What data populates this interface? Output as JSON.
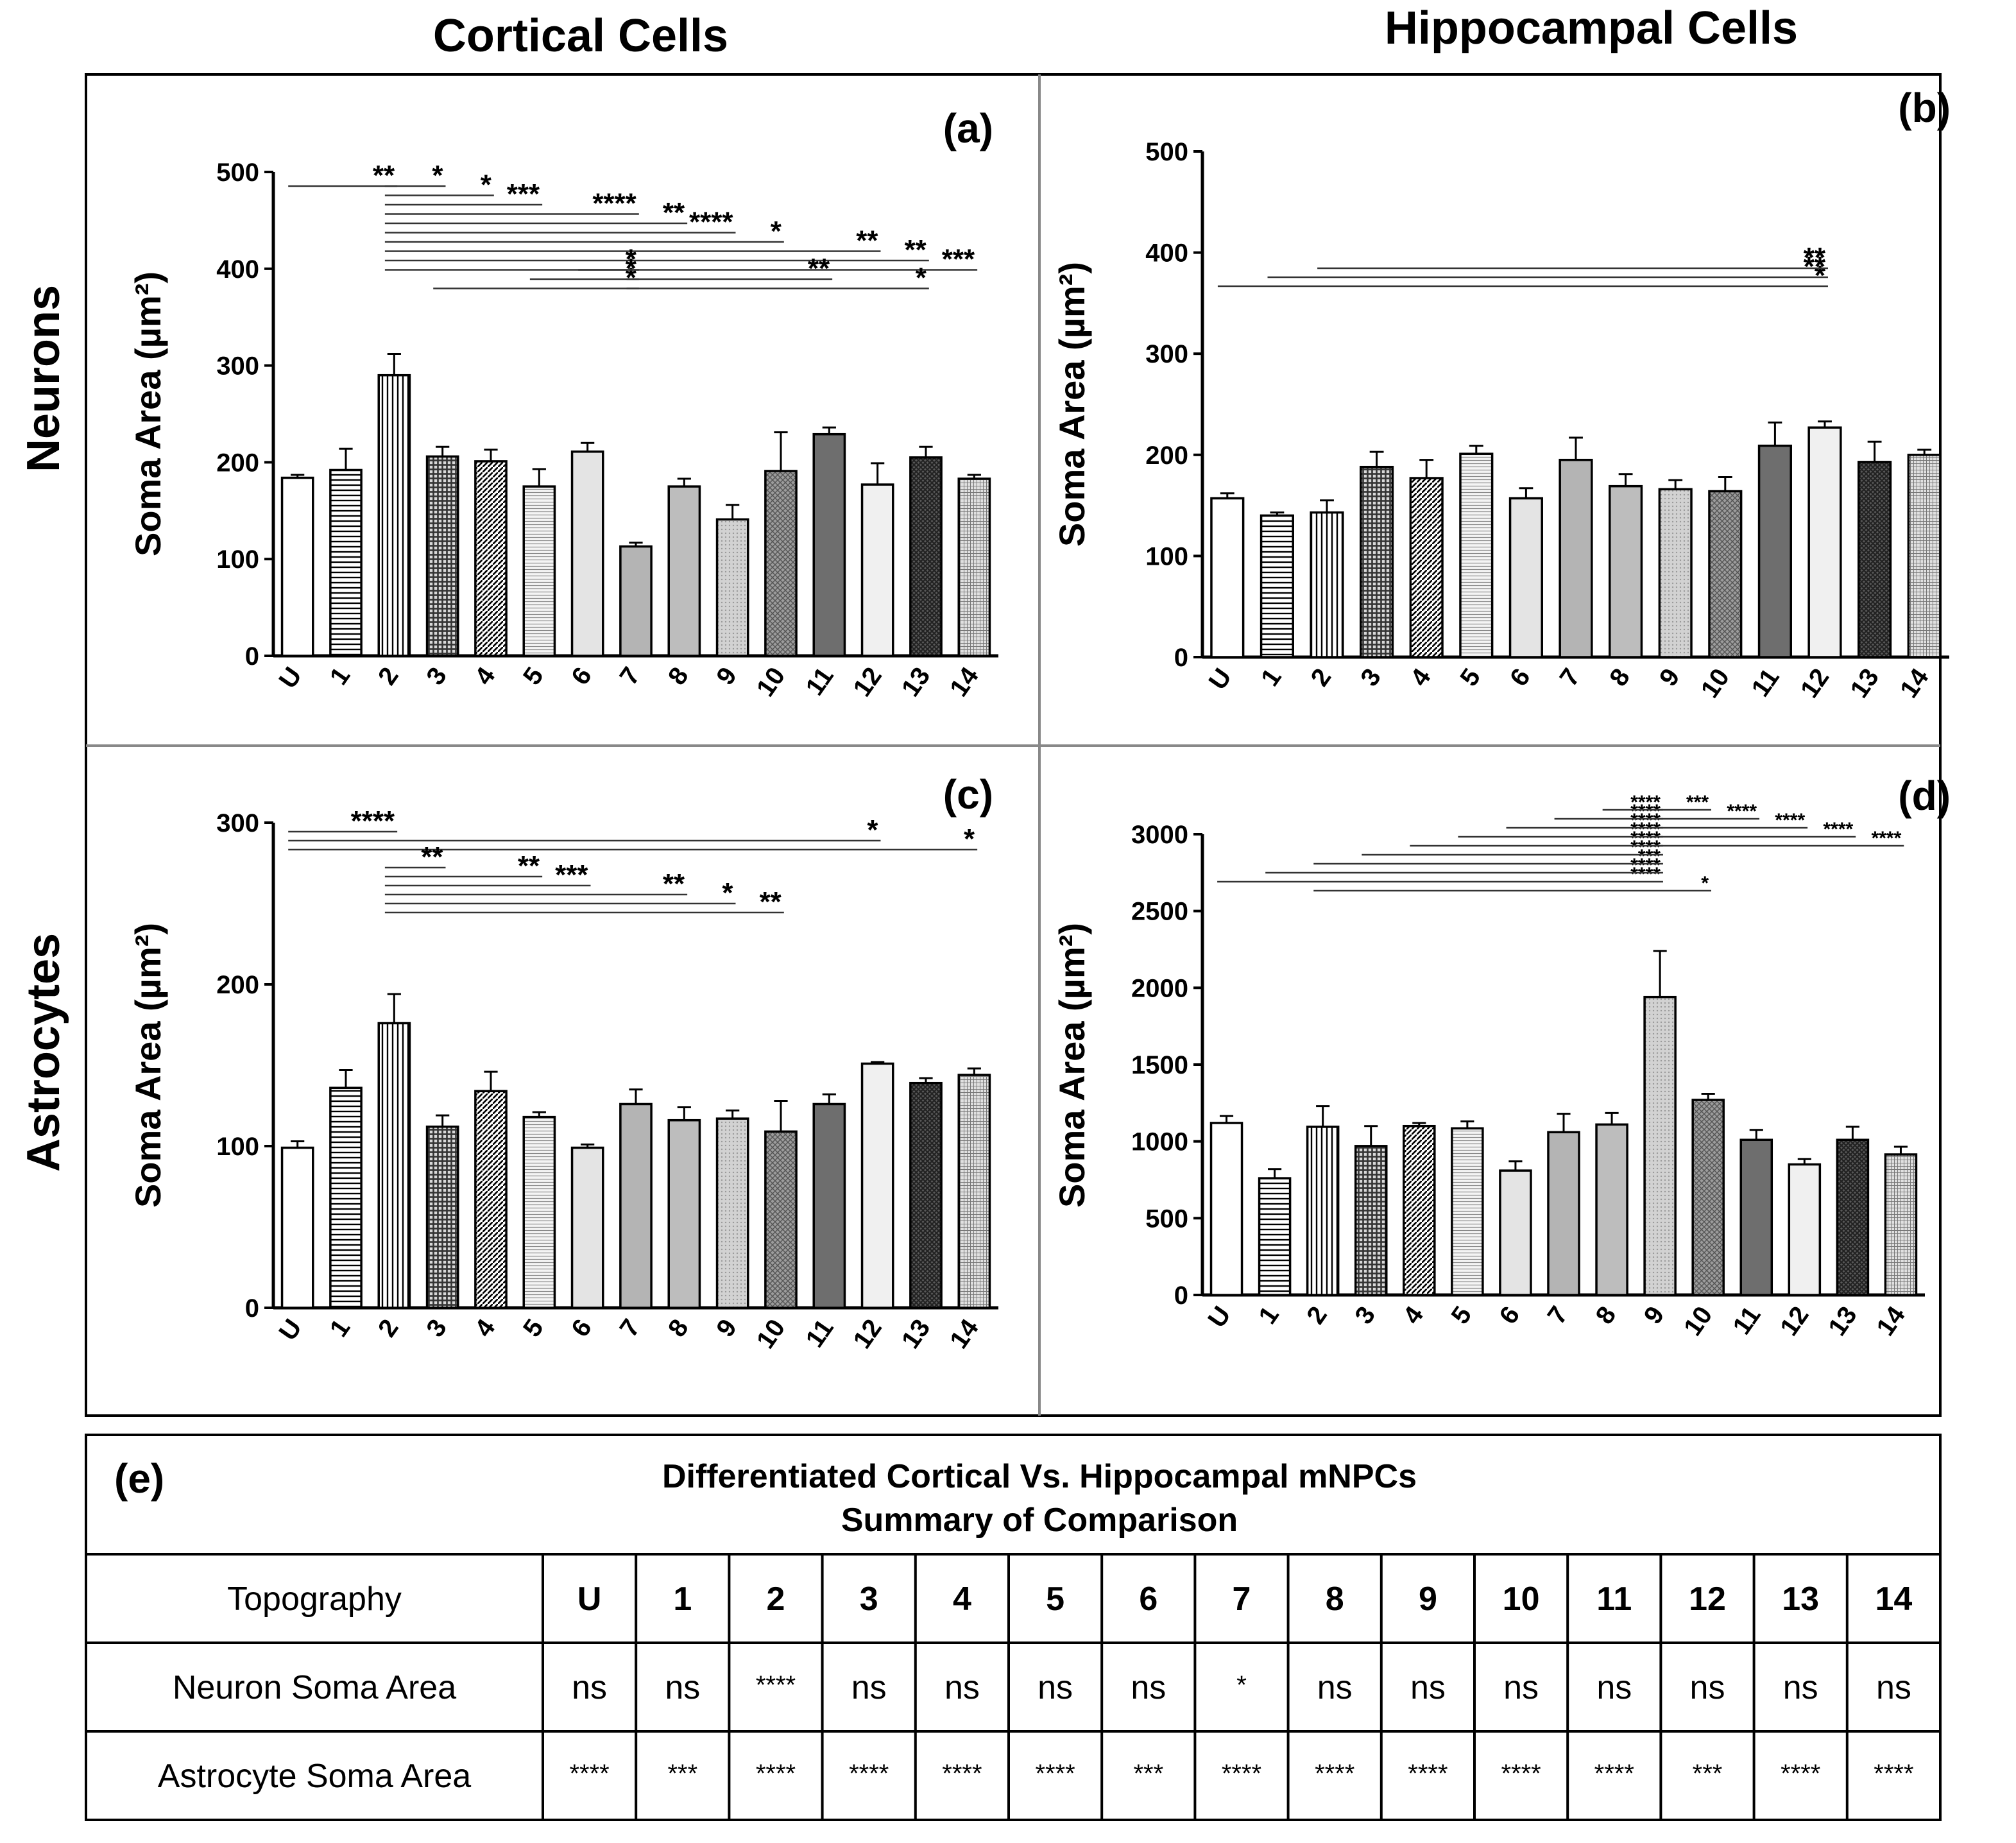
{
  "column_titles": [
    "Cortical Cells",
    "Hippocampal Cells"
  ],
  "row_titles": [
    "Neurons",
    "Astrocytes"
  ],
  "categories": [
    "U",
    "1",
    "2",
    "3",
    "4",
    "5",
    "6",
    "7",
    "8",
    "9",
    "10",
    "11",
    "12",
    "13",
    "14"
  ],
  "chart_data": [
    {
      "panel": "(a)",
      "type": "bar",
      "title": "",
      "ylabel": "Soma Area (µm²)",
      "ylim": [
        0,
        500
      ],
      "yticks": [
        0,
        100,
        200,
        300,
        400,
        500
      ],
      "values": [
        184,
        192,
        290,
        206,
        201,
        175,
        211,
        113,
        175,
        141,
        191,
        229,
        177,
        205,
        183
      ],
      "errors": [
        3,
        22,
        22,
        10,
        12,
        18,
        9,
        4,
        8,
        15,
        40,
        7,
        22,
        11,
        4
      ],
      "significance": [
        {
          "from": 0,
          "to": 2,
          "level": 0,
          "label": "**"
        },
        {
          "from": 2,
          "to": 3,
          "level": 0,
          "label": "*"
        },
        {
          "from": 2,
          "to": 4,
          "level": 1,
          "label": "*"
        },
        {
          "from": 2,
          "to": 5,
          "level": 2,
          "label": "***"
        },
        {
          "from": 2,
          "to": 7,
          "level": 3,
          "label": "****"
        },
        {
          "from": 2,
          "to": 8,
          "level": 4,
          "label": "**"
        },
        {
          "from": 2,
          "to": 9,
          "level": 5,
          "label": "****"
        },
        {
          "from": 2,
          "to": 10,
          "level": 6,
          "label": "*"
        },
        {
          "from": 2,
          "to": 12,
          "level": 7,
          "label": "**"
        },
        {
          "from": 2,
          "to": 13,
          "level": 8,
          "label": "**"
        },
        {
          "from": 2,
          "to": 14,
          "level": 9,
          "label": "***"
        },
        {
          "from": 3,
          "to": 7,
          "level": 11,
          "label": "*"
        },
        {
          "from": 5,
          "to": 7,
          "level": 10,
          "label": "*"
        },
        {
          "from": 6,
          "to": 7,
          "level": 9,
          "label": "*"
        },
        {
          "from": 7,
          "to": 11,
          "level": 10,
          "label": "**"
        },
        {
          "from": 7,
          "to": 13,
          "level": 11,
          "label": "*"
        }
      ]
    },
    {
      "panel": "(b)",
      "type": "bar",
      "title": "",
      "ylabel": "Soma Area (µm²)",
      "ylim": [
        0,
        500
      ],
      "yticks": [
        0,
        100,
        200,
        300,
        400,
        500
      ],
      "values": [
        157,
        140,
        143,
        188,
        177,
        201,
        157,
        195,
        169,
        166,
        164,
        209,
        227,
        193,
        200
      ],
      "errors": [
        5,
        3,
        12,
        15,
        18,
        8,
        10,
        22,
        12,
        9,
        14,
        23,
        6,
        20,
        5
      ],
      "significance": [
        {
          "from": 0,
          "to": 12,
          "level": 2,
          "label": "*"
        },
        {
          "from": 1,
          "to": 12,
          "level": 1,
          "label": "**"
        },
        {
          "from": 2,
          "to": 12,
          "level": 0,
          "label": "**"
        }
      ]
    },
    {
      "panel": "(c)",
      "type": "bar",
      "title": "",
      "ylabel": "Soma Area (µm²)",
      "ylim": [
        0,
        300
      ],
      "yticks": [
        0,
        100,
        200,
        300
      ],
      "values": [
        99,
        136,
        176,
        112,
        134,
        118,
        99,
        126,
        116,
        117,
        109,
        126,
        151,
        139,
        144
      ],
      "errors": [
        4,
        11,
        18,
        7,
        12,
        3,
        2,
        9,
        8,
        5,
        19,
        6,
        1,
        3,
        4
      ],
      "significance": [
        {
          "from": 0,
          "to": 2,
          "level": 0,
          "label": "****"
        },
        {
          "from": 0,
          "to": 12,
          "level": 1,
          "label": "*"
        },
        {
          "from": 0,
          "to": 14,
          "level": 2,
          "label": "*"
        },
        {
          "from": 2,
          "to": 3,
          "level": 4,
          "label": "**"
        },
        {
          "from": 2,
          "to": 5,
          "level": 5,
          "label": "**"
        },
        {
          "from": 2,
          "to": 6,
          "level": 6,
          "label": "***"
        },
        {
          "from": 2,
          "to": 8,
          "level": 7,
          "label": "**"
        },
        {
          "from": 2,
          "to": 9,
          "level": 8,
          "label": "*"
        },
        {
          "from": 2,
          "to": 10,
          "level": 9,
          "label": "**"
        }
      ]
    },
    {
      "panel": "(d)",
      "type": "bar",
      "title": "",
      "ylabel": "Soma Area (µm²)",
      "ylim": [
        0,
        3000
      ],
      "yticks": [
        0,
        500,
        1000,
        1500,
        2000,
        2500,
        3000
      ],
      "values": [
        1120,
        760,
        1095,
        970,
        1100,
        1085,
        810,
        1060,
        1110,
        1940,
        1270,
        1010,
        850,
        1010,
        915
      ],
      "errors": [
        45,
        60,
        135,
        130,
        20,
        45,
        60,
        120,
        75,
        300,
        40,
        65,
        35,
        85,
        50
      ],
      "significance": [
        {
          "from": 0,
          "to": 9,
          "level": 9,
          "label": "****"
        },
        {
          "from": 1,
          "to": 9,
          "level": 8,
          "label": "****"
        },
        {
          "from": 2,
          "to": 9,
          "level": 7,
          "label": "***"
        },
        {
          "from": 3,
          "to": 9,
          "level": 6,
          "label": "****"
        },
        {
          "from": 4,
          "to": 9,
          "level": 5,
          "label": "****"
        },
        {
          "from": 5,
          "to": 9,
          "level": 4,
          "label": "****"
        },
        {
          "from": 6,
          "to": 9,
          "level": 3,
          "label": "****"
        },
        {
          "from": 7,
          "to": 9,
          "level": 2,
          "label": "****"
        },
        {
          "from": 8,
          "to": 9,
          "level": 1,
          "label": "****"
        },
        {
          "from": 9,
          "to": 10,
          "level": 1,
          "label": "***"
        },
        {
          "from": 9,
          "to": 11,
          "level": 2,
          "label": "****"
        },
        {
          "from": 9,
          "to": 12,
          "level": 3,
          "label": "****"
        },
        {
          "from": 9,
          "to": 13,
          "level": 4,
          "label": "****"
        },
        {
          "from": 9,
          "to": 14,
          "level": 5,
          "label": "****"
        },
        {
          "from": 2,
          "to": 10,
          "level": 10,
          "label": "*"
        }
      ]
    }
  ],
  "summary_table": {
    "panel": "(e)",
    "title_line1": "Differentiated Cortical Vs. Hippocampal mNPCs",
    "title_line2": "Summary of Comparison",
    "header_label": "Topography",
    "columns": [
      "U",
      "1",
      "2",
      "3",
      "4",
      "5",
      "6",
      "7",
      "8",
      "9",
      "10",
      "11",
      "12",
      "13",
      "14"
    ],
    "rows": [
      {
        "label": "Neuron Soma Area",
        "values": [
          "ns",
          "ns",
          "****",
          "ns",
          "ns",
          "ns",
          "ns",
          "*",
          "ns",
          "ns",
          "ns",
          "ns",
          "ns",
          "ns",
          "ns"
        ]
      },
      {
        "label": "Astrocyte Soma Area",
        "values": [
          "****",
          "***",
          "****",
          "****",
          "****",
          "****",
          "***",
          "****",
          "****",
          "****",
          "****",
          "****",
          "***",
          "****",
          "****"
        ]
      }
    ]
  }
}
